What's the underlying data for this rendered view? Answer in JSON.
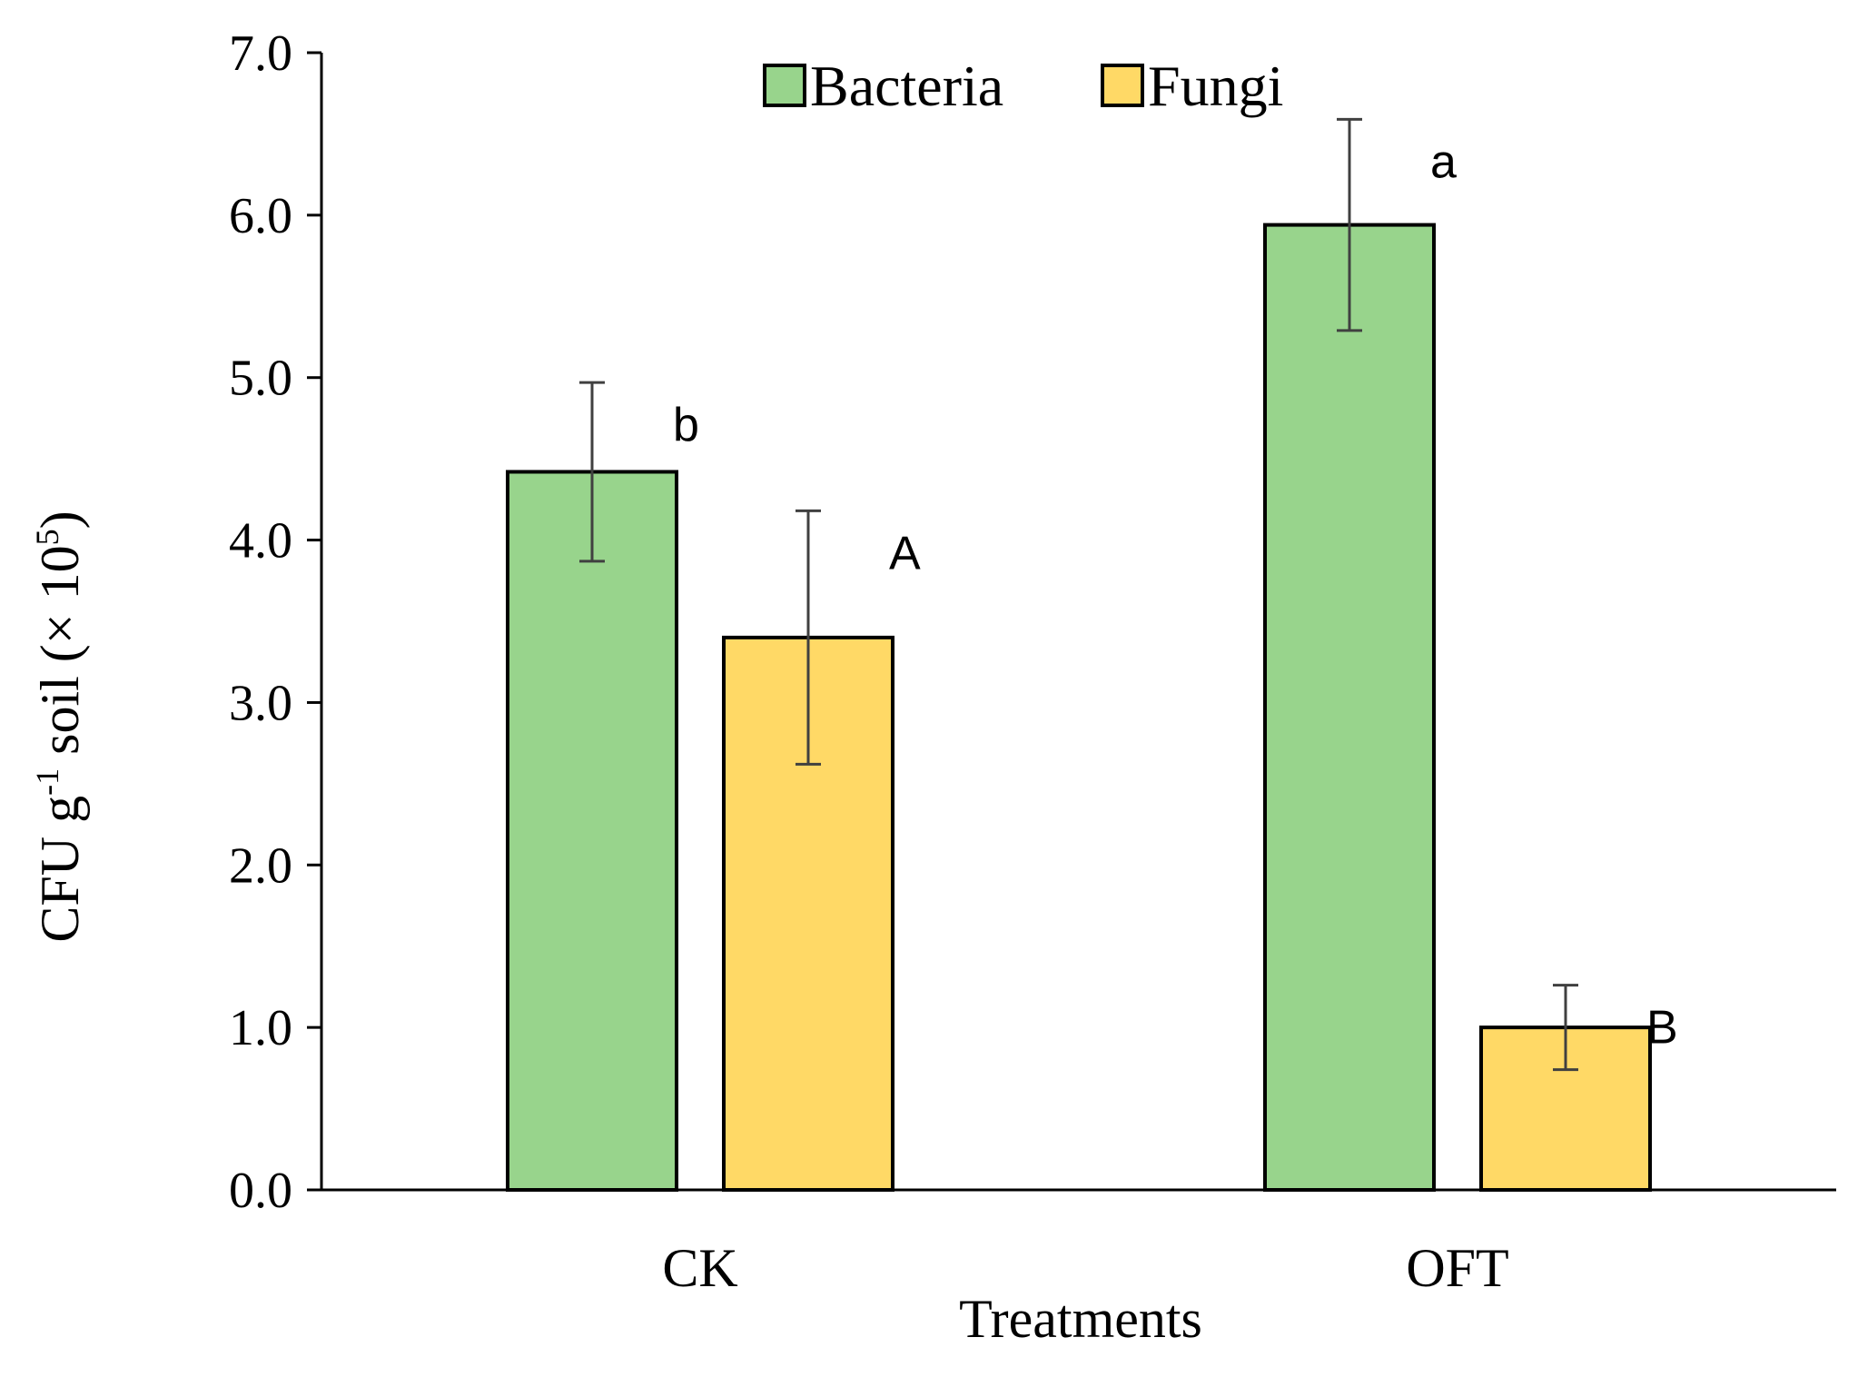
{
  "chart_data": {
    "type": "bar",
    "title": "",
    "xlabel": "Treatments",
    "ylabel_main": "CFU g",
    "ylabel_sup1": "-1",
    "ylabel_mid": " soil (× 10",
    "ylabel_sup2": "5",
    "ylabel_end": ")",
    "ylim": [
      0,
      7
    ],
    "ytick_step": 1,
    "ytick_labels": [
      "0.0",
      "1.0",
      "2.0",
      "3.0",
      "4.0",
      "5.0",
      "6.0",
      "7.0"
    ],
    "categories": [
      "CK",
      "OFT"
    ],
    "legend_position": "top-center",
    "series": [
      {
        "name": "Bacteria",
        "color": "#98D48C",
        "values": [
          4.42,
          5.94
        ],
        "errors": [
          0.55,
          0.65
        ],
        "significance": [
          "b",
          "a"
        ]
      },
      {
        "name": "Fungi",
        "color": "#FFD966",
        "values": [
          3.4,
          1.0
        ],
        "errors": [
          0.78,
          0.26
        ],
        "significance": [
          "A",
          "B"
        ]
      }
    ]
  }
}
